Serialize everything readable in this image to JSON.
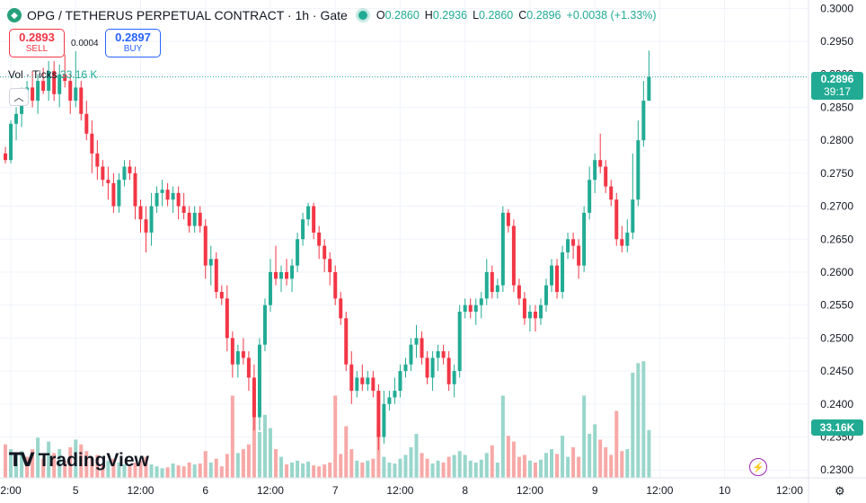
{
  "header": {
    "symbol_icon": "tether-icon",
    "title": "OPG / TETHERUS PERPETUAL CONTRACT · 1h · Gate",
    "ohlc": {
      "o_label": "O",
      "o": "0.2860",
      "h_label": "H",
      "h": "0.2936",
      "l_label": "L",
      "l": "0.2860",
      "c_label": "C",
      "c": "0.2896",
      "change": "+0.0038 (+1.33%)"
    }
  },
  "trade": {
    "sell_price": "0.2893",
    "sell_label": "SELL",
    "spread": "0.0004",
    "buy_price": "0.2897",
    "buy_label": "BUY"
  },
  "volume_legend": {
    "label": "Vol · Ticks",
    "value": "33.16 K"
  },
  "price_tag": {
    "price": "0.2896",
    "countdown": "39:17",
    "color": "#22ab94"
  },
  "volume_tag": {
    "value": "33.16K",
    "color": "#22ab94"
  },
  "logo": {
    "text": "TradingView",
    "mark": "TV"
  },
  "colors": {
    "up": "#22ab94",
    "down": "#f23645",
    "up_vol": "#99d6cb",
    "down_vol": "#f7a9a7"
  },
  "chart_data": {
    "type": "candlestick",
    "price_axis": {
      "ticks": [
        "0.3000",
        "0.2950",
        "0.2900",
        "0.2850",
        "0.2800",
        "0.2750",
        "0.2700",
        "0.2650",
        "0.2600",
        "0.2550",
        "0.2500",
        "0.2450",
        "0.2400",
        "0.2350",
        "0.2300"
      ],
      "range": [
        0.2288,
        0.301
      ]
    },
    "time_axis": {
      "labels": [
        {
          "text": "2:00",
          "i": 0
        },
        {
          "text": "5",
          "i": 12
        },
        {
          "text": "12:00",
          "i": 24
        },
        {
          "text": "6",
          "i": 36
        },
        {
          "text": "12:00",
          "i": 48
        },
        {
          "text": "7",
          "i": 60
        },
        {
          "text": "12:00",
          "i": 72
        },
        {
          "text": "8",
          "i": 84
        },
        {
          "text": "12:00",
          "i": 96
        },
        {
          "text": "9",
          "i": 108
        },
        {
          "text": "12:00",
          "i": 120
        },
        {
          "text": "10",
          "i": 132
        },
        {
          "text": "12:00",
          "i": 144
        }
      ]
    },
    "grid": true,
    "candles": [
      [
        0.278,
        0.279,
        0.2765,
        0.277
      ],
      [
        0.277,
        0.283,
        0.2765,
        0.2825
      ],
      [
        0.2825,
        0.285,
        0.28,
        0.284
      ],
      [
        0.284,
        0.288,
        0.282,
        0.287
      ],
      [
        0.287,
        0.289,
        0.286,
        0.288
      ],
      [
        0.288,
        0.2905,
        0.285,
        0.286
      ],
      [
        0.286,
        0.29,
        0.284,
        0.289
      ],
      [
        0.289,
        0.291,
        0.287,
        0.2875
      ],
      [
        0.2875,
        0.292,
        0.286,
        0.2905
      ],
      [
        0.2905,
        0.292,
        0.286,
        0.287
      ],
      [
        0.287,
        0.2915,
        0.285,
        0.29
      ],
      [
        0.29,
        0.293,
        0.288,
        0.289
      ],
      [
        0.289,
        0.29,
        0.284,
        0.286
      ],
      [
        0.286,
        0.2935,
        0.285,
        0.288
      ],
      [
        0.288,
        0.289,
        0.283,
        0.284
      ],
      [
        0.284,
        0.286,
        0.28,
        0.281
      ],
      [
        0.281,
        0.283,
        0.275,
        0.278
      ],
      [
        0.278,
        0.28,
        0.274,
        0.276
      ],
      [
        0.276,
        0.277,
        0.273,
        0.274
      ],
      [
        0.274,
        0.276,
        0.271,
        0.2735
      ],
      [
        0.2735,
        0.275,
        0.269,
        0.27
      ],
      [
        0.27,
        0.275,
        0.269,
        0.274
      ],
      [
        0.274,
        0.277,
        0.273,
        0.276
      ],
      [
        0.276,
        0.277,
        0.274,
        0.275
      ],
      [
        0.275,
        0.276,
        0.268,
        0.27
      ],
      [
        0.27,
        0.271,
        0.266,
        0.268
      ],
      [
        0.268,
        0.27,
        0.263,
        0.266
      ],
      [
        0.266,
        0.272,
        0.264,
        0.27
      ],
      [
        0.27,
        0.273,
        0.269,
        0.272
      ],
      [
        0.272,
        0.274,
        0.27,
        0.2725
      ],
      [
        0.2725,
        0.2735,
        0.27,
        0.271
      ],
      [
        0.271,
        0.273,
        0.269,
        0.272
      ],
      [
        0.272,
        0.273,
        0.268,
        0.27
      ],
      [
        0.27,
        0.272,
        0.268,
        0.269
      ],
      [
        0.269,
        0.27,
        0.266,
        0.267
      ],
      [
        0.267,
        0.27,
        0.266,
        0.269
      ],
      [
        0.269,
        0.27,
        0.266,
        0.267
      ],
      [
        0.267,
        0.268,
        0.259,
        0.261
      ],
      [
        0.261,
        0.264,
        0.258,
        0.262
      ],
      [
        0.262,
        0.263,
        0.256,
        0.257
      ],
      [
        0.257,
        0.258,
        0.255,
        0.256
      ],
      [
        0.256,
        0.258,
        0.248,
        0.25
      ],
      [
        0.25,
        0.251,
        0.244,
        0.246
      ],
      [
        0.246,
        0.249,
        0.244,
        0.248
      ],
      [
        0.248,
        0.25,
        0.246,
        0.247
      ],
      [
        0.247,
        0.248,
        0.242,
        0.244
      ],
      [
        0.244,
        0.246,
        0.236,
        0.238
      ],
      [
        0.238,
        0.25,
        0.236,
        0.249
      ],
      [
        0.249,
        0.256,
        0.248,
        0.255
      ],
      [
        0.255,
        0.262,
        0.254,
        0.26
      ],
      [
        0.26,
        0.264,
        0.258,
        0.259
      ],
      [
        0.259,
        0.261,
        0.257,
        0.26
      ],
      [
        0.26,
        0.262,
        0.258,
        0.259
      ],
      [
        0.259,
        0.262,
        0.257,
        0.261
      ],
      [
        0.261,
        0.266,
        0.26,
        0.265
      ],
      [
        0.265,
        0.269,
        0.264,
        0.268
      ],
      [
        0.268,
        0.2705,
        0.267,
        0.27
      ],
      [
        0.27,
        0.2705,
        0.265,
        0.266
      ],
      [
        0.266,
        0.267,
        0.262,
        0.264
      ],
      [
        0.264,
        0.265,
        0.26,
        0.262
      ],
      [
        0.262,
        0.263,
        0.258,
        0.26
      ],
      [
        0.26,
        0.261,
        0.255,
        0.256
      ],
      [
        0.256,
        0.257,
        0.252,
        0.253
      ],
      [
        0.253,
        0.254,
        0.245,
        0.246
      ],
      [
        0.246,
        0.248,
        0.24,
        0.242
      ],
      [
        0.242,
        0.245,
        0.241,
        0.244
      ],
      [
        0.244,
        0.246,
        0.242,
        0.243
      ],
      [
        0.243,
        0.245,
        0.242,
        0.244
      ],
      [
        0.244,
        0.245,
        0.241,
        0.242
      ],
      [
        0.242,
        0.243,
        0.233,
        0.235
      ],
      [
        0.235,
        0.242,
        0.234,
        0.24
      ],
      [
        0.24,
        0.242,
        0.239,
        0.241
      ],
      [
        0.241,
        0.244,
        0.24,
        0.242
      ],
      [
        0.242,
        0.246,
        0.241,
        0.245
      ],
      [
        0.245,
        0.247,
        0.244,
        0.246
      ],
      [
        0.246,
        0.25,
        0.245,
        0.249
      ],
      [
        0.249,
        0.252,
        0.247,
        0.25
      ],
      [
        0.25,
        0.251,
        0.246,
        0.247
      ],
      [
        0.247,
        0.248,
        0.243,
        0.244
      ],
      [
        0.244,
        0.248,
        0.242,
        0.247
      ],
      [
        0.247,
        0.249,
        0.245,
        0.248
      ],
      [
        0.248,
        0.249,
        0.246,
        0.247
      ],
      [
        0.247,
        0.248,
        0.242,
        0.243
      ],
      [
        0.243,
        0.246,
        0.241,
        0.245
      ],
      [
        0.245,
        0.255,
        0.244,
        0.254
      ],
      [
        0.254,
        0.256,
        0.253,
        0.255
      ],
      [
        0.255,
        0.256,
        0.253,
        0.254
      ],
      [
        0.254,
        0.256,
        0.252,
        0.255
      ],
      [
        0.255,
        0.257,
        0.253,
        0.256
      ],
      [
        0.256,
        0.262,
        0.255,
        0.26
      ],
      [
        0.26,
        0.261,
        0.256,
        0.257
      ],
      [
        0.257,
        0.259,
        0.256,
        0.258
      ],
      [
        0.258,
        0.27,
        0.257,
        0.269
      ],
      [
        0.269,
        0.2695,
        0.266,
        0.267
      ],
      [
        0.267,
        0.268,
        0.257,
        0.258
      ],
      [
        0.258,
        0.259,
        0.255,
        0.256
      ],
      [
        0.256,
        0.257,
        0.252,
        0.253
      ],
      [
        0.253,
        0.255,
        0.251,
        0.254
      ],
      [
        0.254,
        0.255,
        0.251,
        0.253
      ],
      [
        0.253,
        0.256,
        0.252,
        0.255
      ],
      [
        0.255,
        0.259,
        0.254,
        0.258
      ],
      [
        0.258,
        0.262,
        0.257,
        0.261
      ],
      [
        0.261,
        0.262,
        0.256,
        0.257
      ],
      [
        0.257,
        0.264,
        0.256,
        0.263
      ],
      [
        0.263,
        0.266,
        0.262,
        0.265
      ],
      [
        0.265,
        0.266,
        0.262,
        0.264
      ],
      [
        0.264,
        0.265,
        0.259,
        0.261
      ],
      [
        0.261,
        0.27,
        0.26,
        0.269
      ],
      [
        0.269,
        0.276,
        0.268,
        0.274
      ],
      [
        0.274,
        0.278,
        0.272,
        0.277
      ],
      [
        0.277,
        0.281,
        0.275,
        0.276
      ],
      [
        0.276,
        0.277,
        0.272,
        0.273
      ],
      [
        0.273,
        0.274,
        0.27,
        0.271
      ],
      [
        0.271,
        0.272,
        0.264,
        0.265
      ],
      [
        0.265,
        0.267,
        0.263,
        0.264
      ],
      [
        0.264,
        0.268,
        0.263,
        0.266
      ],
      [
        0.266,
        0.278,
        0.265,
        0.271
      ],
      [
        0.271,
        0.283,
        0.27,
        0.28
      ],
      [
        0.28,
        0.289,
        0.279,
        0.286
      ],
      [
        0.286,
        0.2936,
        0.286,
        0.2896
      ]
    ],
    "volume": [
      [
        3.5,
        0
      ],
      [
        3.0,
        1
      ],
      [
        2.5,
        1
      ],
      [
        2.8,
        1
      ],
      [
        2.2,
        0
      ],
      [
        3.0,
        0
      ],
      [
        4.2,
        1
      ],
      [
        2.0,
        0
      ],
      [
        3.8,
        1
      ],
      [
        2.6,
        0
      ],
      [
        3.0,
        1
      ],
      [
        1.8,
        0
      ],
      [
        3.2,
        0
      ],
      [
        4.0,
        1
      ],
      [
        3.5,
        0
      ],
      [
        2.8,
        0
      ],
      [
        2.0,
        0
      ],
      [
        2.4,
        0
      ],
      [
        1.5,
        0
      ],
      [
        1.8,
        1
      ],
      [
        2.0,
        0
      ],
      [
        1.6,
        1
      ],
      [
        1.4,
        1
      ],
      [
        1.2,
        0
      ],
      [
        1.6,
        0
      ],
      [
        1.8,
        0
      ],
      [
        2.2,
        0
      ],
      [
        1.4,
        1
      ],
      [
        1.2,
        1
      ],
      [
        1.0,
        1
      ],
      [
        1.1,
        0
      ],
      [
        1.5,
        1
      ],
      [
        1.3,
        0
      ],
      [
        1.2,
        0
      ],
      [
        1.6,
        0
      ],
      [
        1.4,
        1
      ],
      [
        1.5,
        0
      ],
      [
        2.8,
        0
      ],
      [
        1.6,
        1
      ],
      [
        2.0,
        0
      ],
      [
        1.2,
        0
      ],
      [
        2.5,
        0
      ],
      [
        8.6,
        0
      ],
      [
        2.6,
        1
      ],
      [
        3.0,
        0
      ],
      [
        3.5,
        0
      ],
      [
        7.8,
        0
      ],
      [
        4.8,
        1
      ],
      [
        6.6,
        1
      ],
      [
        5.2,
        1
      ],
      [
        3.0,
        0
      ],
      [
        2.2,
        1
      ],
      [
        1.4,
        0
      ],
      [
        1.6,
        1
      ],
      [
        1.8,
        1
      ],
      [
        1.5,
        1
      ],
      [
        1.7,
        1
      ],
      [
        1.3,
        0
      ],
      [
        1.2,
        0
      ],
      [
        1.4,
        0
      ],
      [
        1.6,
        0
      ],
      [
        8.6,
        0
      ],
      [
        2.5,
        0
      ],
      [
        5.4,
        0
      ],
      [
        3.0,
        0
      ],
      [
        1.8,
        1
      ],
      [
        1.6,
        0
      ],
      [
        1.8,
        1
      ],
      [
        2.0,
        0
      ],
      [
        5.2,
        0
      ],
      [
        2.2,
        1
      ],
      [
        1.6,
        1
      ],
      [
        1.5,
        1
      ],
      [
        2.0,
        1
      ],
      [
        2.4,
        1
      ],
      [
        3.2,
        1
      ],
      [
        4.6,
        1
      ],
      [
        2.6,
        0
      ],
      [
        2.0,
        0
      ],
      [
        1.5,
        1
      ],
      [
        1.8,
        1
      ],
      [
        1.6,
        0
      ],
      [
        2.2,
        0
      ],
      [
        2.4,
        1
      ],
      [
        2.8,
        1
      ],
      [
        2.4,
        1
      ],
      [
        1.8,
        1
      ],
      [
        1.6,
        1
      ],
      [
        1.9,
        1
      ],
      [
        2.6,
        1
      ],
      [
        3.4,
        0
      ],
      [
        1.6,
        1
      ],
      [
        8.6,
        1
      ],
      [
        4.4,
        0
      ],
      [
        3.8,
        0
      ],
      [
        2.2,
        0
      ],
      [
        2.4,
        0
      ],
      [
        1.8,
        1
      ],
      [
        1.6,
        0
      ],
      [
        1.9,
        1
      ],
      [
        2.6,
        1
      ],
      [
        3.0,
        1
      ],
      [
        2.5,
        0
      ],
      [
        4.4,
        1
      ],
      [
        2.2,
        1
      ],
      [
        3.2,
        0
      ],
      [
        2.2,
        0
      ],
      [
        8.6,
        1
      ],
      [
        4.6,
        1
      ],
      [
        5.6,
        1
      ],
      [
        4.0,
        0
      ],
      [
        3.2,
        0
      ],
      [
        2.4,
        0
      ],
      [
        7.0,
        0
      ],
      [
        2.8,
        0
      ],
      [
        3.0,
        1
      ],
      [
        11.0,
        1
      ],
      [
        12.0,
        1
      ],
      [
        12.2,
        1
      ],
      [
        5.0,
        1
      ]
    ]
  }
}
